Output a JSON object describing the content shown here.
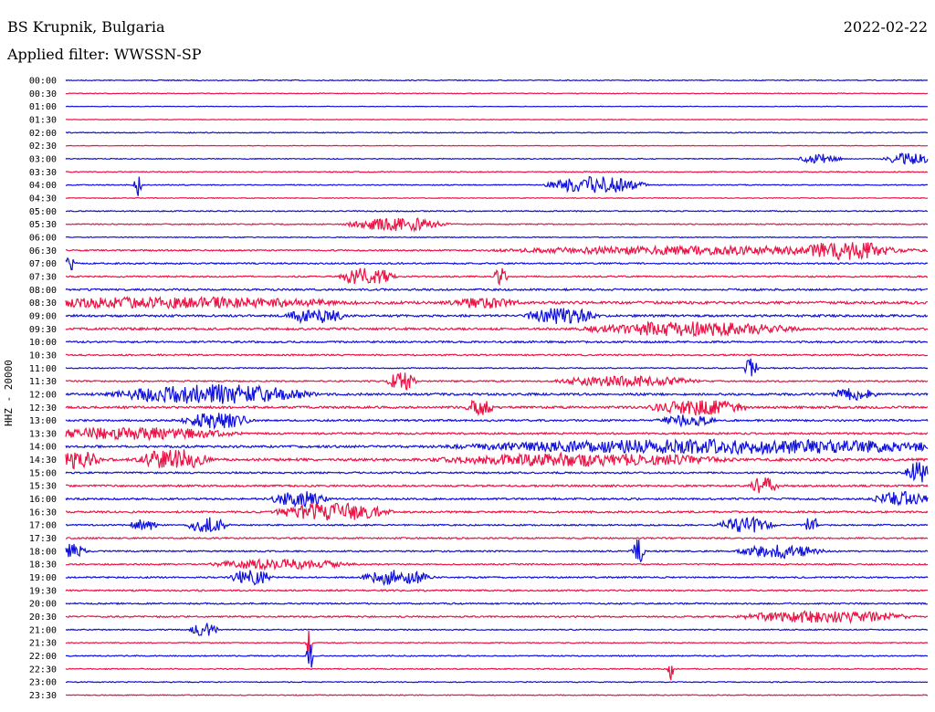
{
  "header": {
    "station": "BS Krupnik, Bulgaria",
    "date": "2022-02-22",
    "filter": "Applied filter: WWSSN-SP"
  },
  "axis": {
    "ylabel": "HHZ - 20000"
  },
  "colors": {
    "trace_a": "#1010dd",
    "trace_b": "#ee1144"
  },
  "chart_data": {
    "type": "helicorder",
    "title": "BS Krupnik, Bulgaria",
    "ylabel": "HHZ - 20000",
    "row_labels": [
      "00:00",
      "00:30",
      "01:00",
      "01:30",
      "02:00",
      "02:30",
      "03:00",
      "03:30",
      "04:00",
      "04:30",
      "05:00",
      "05:30",
      "06:00",
      "06:30",
      "07:00",
      "07:30",
      "08:00",
      "08:30",
      "09:00",
      "09:30",
      "10:00",
      "10:30",
      "11:00",
      "11:30",
      "12:00",
      "12:30",
      "13:00",
      "13:30",
      "14:00",
      "14:30",
      "15:00",
      "15:30",
      "16:00",
      "16:30",
      "17:00",
      "17:30",
      "18:00",
      "18:30",
      "19:00",
      "19:30",
      "20:00",
      "20:30",
      "21:00",
      "21:30",
      "22:00",
      "22:30",
      "23:00",
      "23:30"
    ],
    "row_noise": [
      0.5,
      0.4,
      0.3,
      0.3,
      0.5,
      0.3,
      0.5,
      0.5,
      0.5,
      0.4,
      0.6,
      0.6,
      0.5,
      0.8,
      0.8,
      0.8,
      1.0,
      1.4,
      1.2,
      1.2,
      1.0,
      0.8,
      0.6,
      0.8,
      1.2,
      1.2,
      1.0,
      1.0,
      1.2,
      1.4,
      0.9,
      1.0,
      1.0,
      1.0,
      0.8,
      0.8,
      0.8,
      0.8,
      0.8,
      0.8,
      0.8,
      0.8,
      0.6,
      0.5,
      0.6,
      0.6,
      0.5,
      0.5
    ],
    "bursts": [
      {
        "row": 6,
        "x": 0.86,
        "width": 0.03,
        "amp": 5
      },
      {
        "row": 6,
        "x": 0.96,
        "width": 0.035,
        "amp": 6
      },
      {
        "row": 8,
        "x": 0.08,
        "width": 0.006,
        "amp": 14
      },
      {
        "row": 8,
        "x": 0.58,
        "width": 0.07,
        "amp": 9
      },
      {
        "row": 11,
        "x": 0.35,
        "width": 0.07,
        "amp": 7
      },
      {
        "row": 13,
        "x": 0.6,
        "width": 0.3,
        "amp": 4
      },
      {
        "row": 13,
        "x": 0.88,
        "width": 0.06,
        "amp": 7
      },
      {
        "row": 14,
        "x": 0.0,
        "width": 0.01,
        "amp": 8
      },
      {
        "row": 15,
        "x": 0.33,
        "width": 0.04,
        "amp": 9
      },
      {
        "row": 15,
        "x": 0.5,
        "width": 0.01,
        "amp": 10
      },
      {
        "row": 17,
        "x": 0.0,
        "width": 0.25,
        "amp": 5
      },
      {
        "row": 17,
        "x": 0.46,
        "width": 0.05,
        "amp": 5
      },
      {
        "row": 18,
        "x": 0.27,
        "width": 0.04,
        "amp": 8
      },
      {
        "row": 18,
        "x": 0.55,
        "width": 0.05,
        "amp": 8
      },
      {
        "row": 19,
        "x": 0.65,
        "width": 0.15,
        "amp": 7
      },
      {
        "row": 22,
        "x": 0.79,
        "width": 0.01,
        "amp": 10
      },
      {
        "row": 23,
        "x": 0.38,
        "width": 0.02,
        "amp": 10
      },
      {
        "row": 23,
        "x": 0.6,
        "width": 0.1,
        "amp": 5
      },
      {
        "row": 24,
        "x": 0.1,
        "width": 0.14,
        "amp": 10
      },
      {
        "row": 24,
        "x": 0.9,
        "width": 0.03,
        "amp": 6
      },
      {
        "row": 25,
        "x": 0.47,
        "width": 0.02,
        "amp": 8
      },
      {
        "row": 25,
        "x": 0.7,
        "width": 0.07,
        "amp": 8
      },
      {
        "row": 26,
        "x": 0.15,
        "width": 0.05,
        "amp": 8
      },
      {
        "row": 26,
        "x": 0.7,
        "width": 0.04,
        "amp": 6
      },
      {
        "row": 27,
        "x": 0.0,
        "width": 0.15,
        "amp": 6
      },
      {
        "row": 28,
        "x": 0.58,
        "width": 0.38,
        "amp": 7
      },
      {
        "row": 29,
        "x": 0.0,
        "width": 0.03,
        "amp": 9
      },
      {
        "row": 29,
        "x": 0.1,
        "width": 0.05,
        "amp": 11
      },
      {
        "row": 29,
        "x": 0.5,
        "width": 0.2,
        "amp": 6
      },
      {
        "row": 30,
        "x": 0.98,
        "width": 0.02,
        "amp": 11
      },
      {
        "row": 31,
        "x": 0.8,
        "width": 0.02,
        "amp": 9
      },
      {
        "row": 32,
        "x": 0.25,
        "width": 0.04,
        "amp": 8
      },
      {
        "row": 32,
        "x": 0.95,
        "width": 0.04,
        "amp": 7
      },
      {
        "row": 33,
        "x": 0.27,
        "width": 0.08,
        "amp": 9
      },
      {
        "row": 34,
        "x": 0.08,
        "width": 0.02,
        "amp": 6
      },
      {
        "row": 34,
        "x": 0.15,
        "width": 0.03,
        "amp": 8
      },
      {
        "row": 34,
        "x": 0.77,
        "width": 0.04,
        "amp": 8
      },
      {
        "row": 34,
        "x": 0.86,
        "width": 0.01,
        "amp": 10
      },
      {
        "row": 36,
        "x": 0.0,
        "width": 0.02,
        "amp": 8
      },
      {
        "row": 36,
        "x": 0.66,
        "width": 0.01,
        "amp": 14
      },
      {
        "row": 36,
        "x": 0.8,
        "width": 0.06,
        "amp": 7
      },
      {
        "row": 37,
        "x": 0.2,
        "width": 0.1,
        "amp": 5
      },
      {
        "row": 38,
        "x": 0.36,
        "width": 0.05,
        "amp": 8
      },
      {
        "row": 38,
        "x": 0.2,
        "width": 0.03,
        "amp": 8
      },
      {
        "row": 41,
        "x": 0.82,
        "width": 0.12,
        "amp": 6
      },
      {
        "row": 42,
        "x": 0.15,
        "width": 0.02,
        "amp": 7
      },
      {
        "row": 43,
        "x": 0.28,
        "width": 0.005,
        "amp": 16
      },
      {
        "row": 44,
        "x": 0.28,
        "width": 0.005,
        "amp": 20
      },
      {
        "row": 45,
        "x": 0.7,
        "width": 0.004,
        "amp": 12
      }
    ]
  }
}
